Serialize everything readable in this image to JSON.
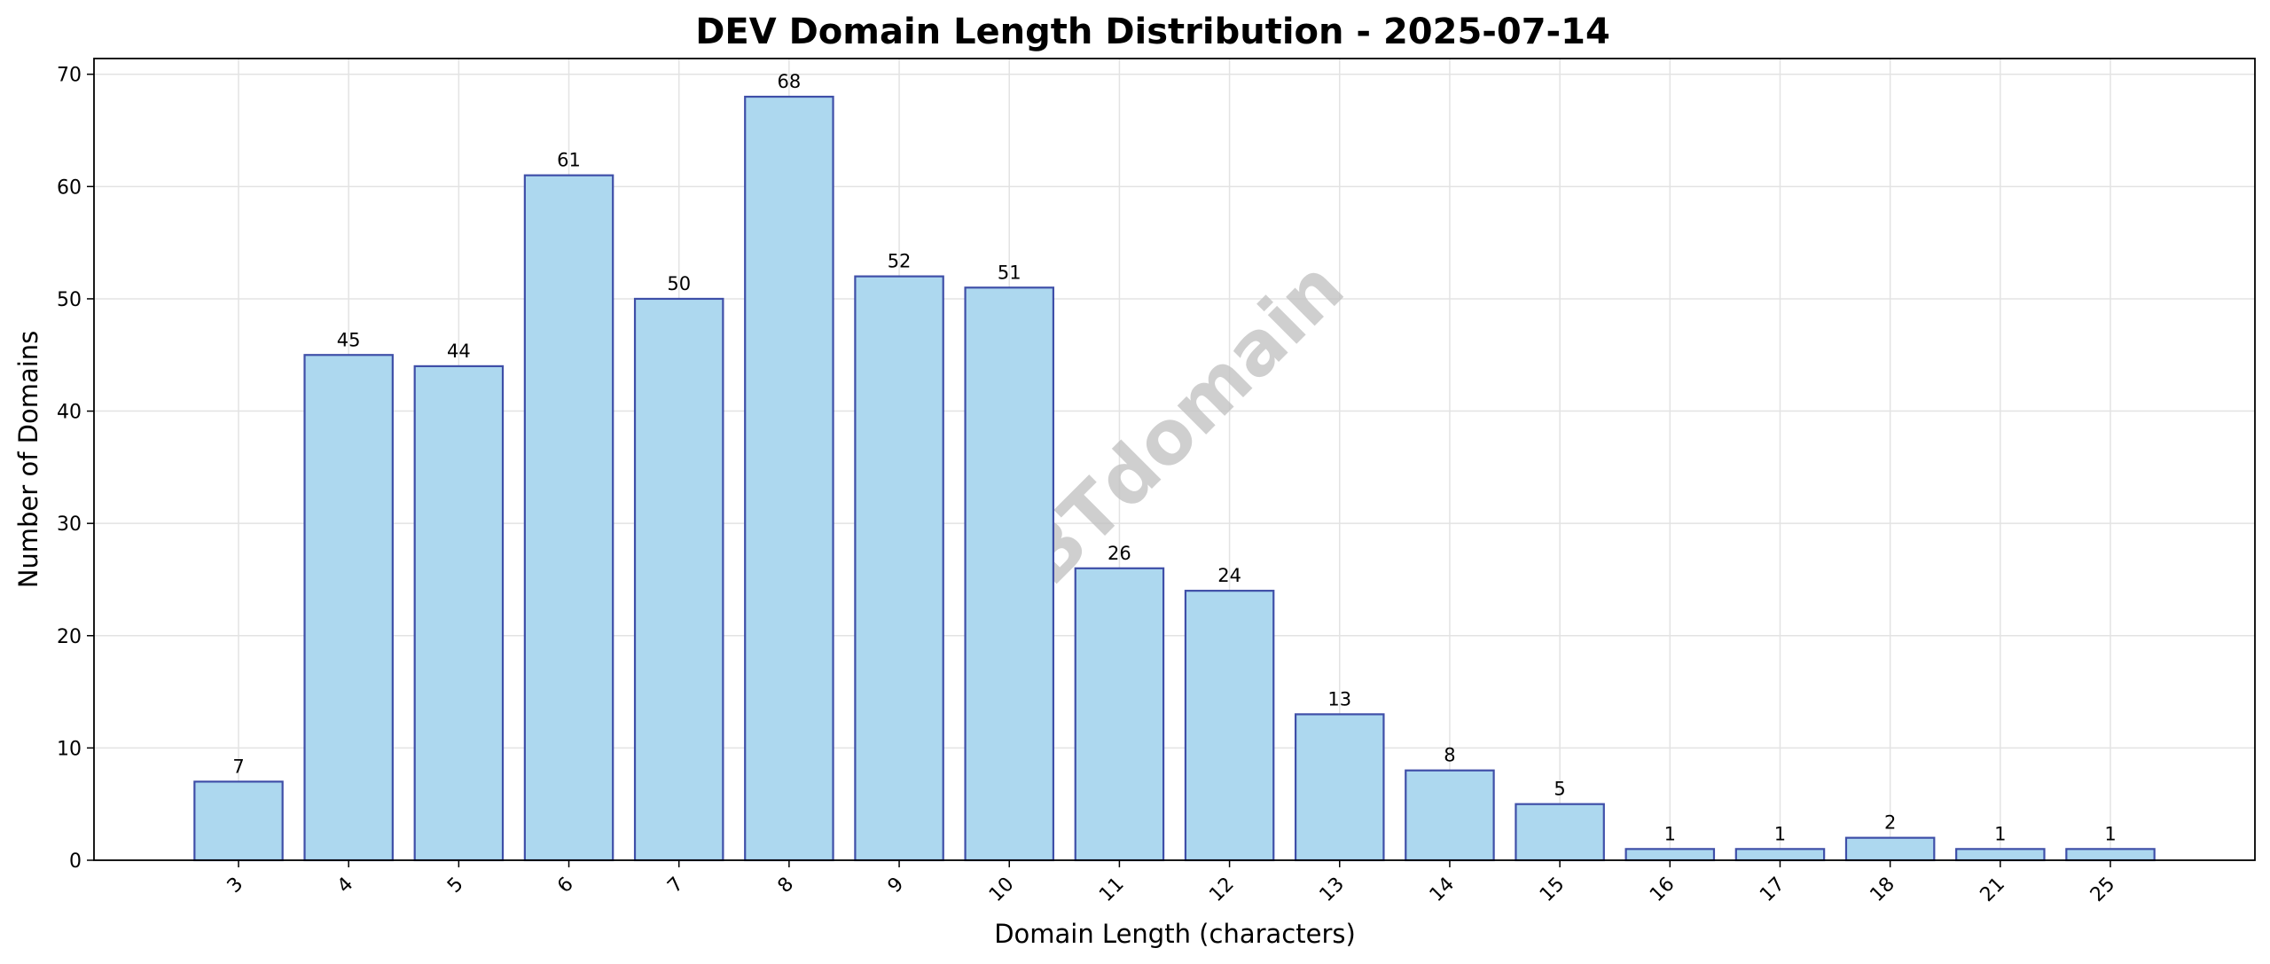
{
  "chart_data": {
    "type": "bar",
    "title": "DEV Domain Length Distribution - 2025-07-14",
    "xlabel": "Domain Length (characters)",
    "ylabel": "Number of Domains",
    "categories": [
      "3",
      "4",
      "5",
      "6",
      "7",
      "8",
      "9",
      "10",
      "11",
      "12",
      "13",
      "14",
      "15",
      "16",
      "17",
      "18",
      "21",
      "25"
    ],
    "values": [
      7,
      45,
      44,
      61,
      50,
      68,
      52,
      51,
      26,
      24,
      13,
      8,
      5,
      1,
      1,
      2,
      1,
      1
    ],
    "ylim": [
      0,
      71.4
    ],
    "yticks": [
      0,
      10,
      20,
      30,
      40,
      50,
      60,
      70
    ],
    "grid": true,
    "bar_fill": "#add8ef",
    "bar_edge": "#3f4fa8",
    "watermark": "ABTdomain"
  }
}
